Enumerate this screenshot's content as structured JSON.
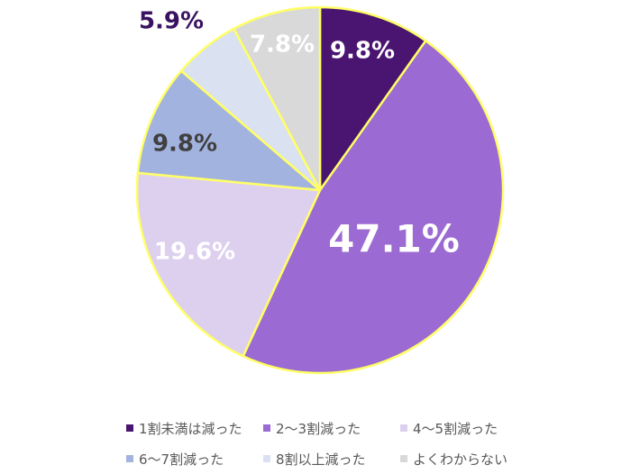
{
  "chart_data": {
    "type": "pie",
    "slices": [
      {
        "label": "1割未満は減った",
        "value": 9.8,
        "display": "9.8%",
        "color": "#4a1570",
        "text_color": "#ffffff"
      },
      {
        "label": "2〜3割減った",
        "value": 47.1,
        "display": "47.1%",
        "color": "#9b6ad2",
        "text_color": "#ffffff"
      },
      {
        "label": "4〜5割減った",
        "value": 19.6,
        "display": "19.6%",
        "color": "#ddd0ef",
        "text_color": "#ffffff"
      },
      {
        "label": "6〜7割減った",
        "value": 9.8,
        "display": "9.8%",
        "color": "#a3b3e0",
        "text_color": "#404040"
      },
      {
        "label": "8割以上減った",
        "value": 5.9,
        "display": "5.9%",
        "color": "#dae2f2",
        "text_color": "#3a1260"
      },
      {
        "label": "よくわからない",
        "value": 7.8,
        "display": "7.8%",
        "color": "#d9d9d9",
        "text_color": "#ffffff"
      }
    ],
    "start_angle": "12 o'clock",
    "direction": "clockwise",
    "slice_border_color": "#ffff66",
    "legend_position": "bottom"
  }
}
